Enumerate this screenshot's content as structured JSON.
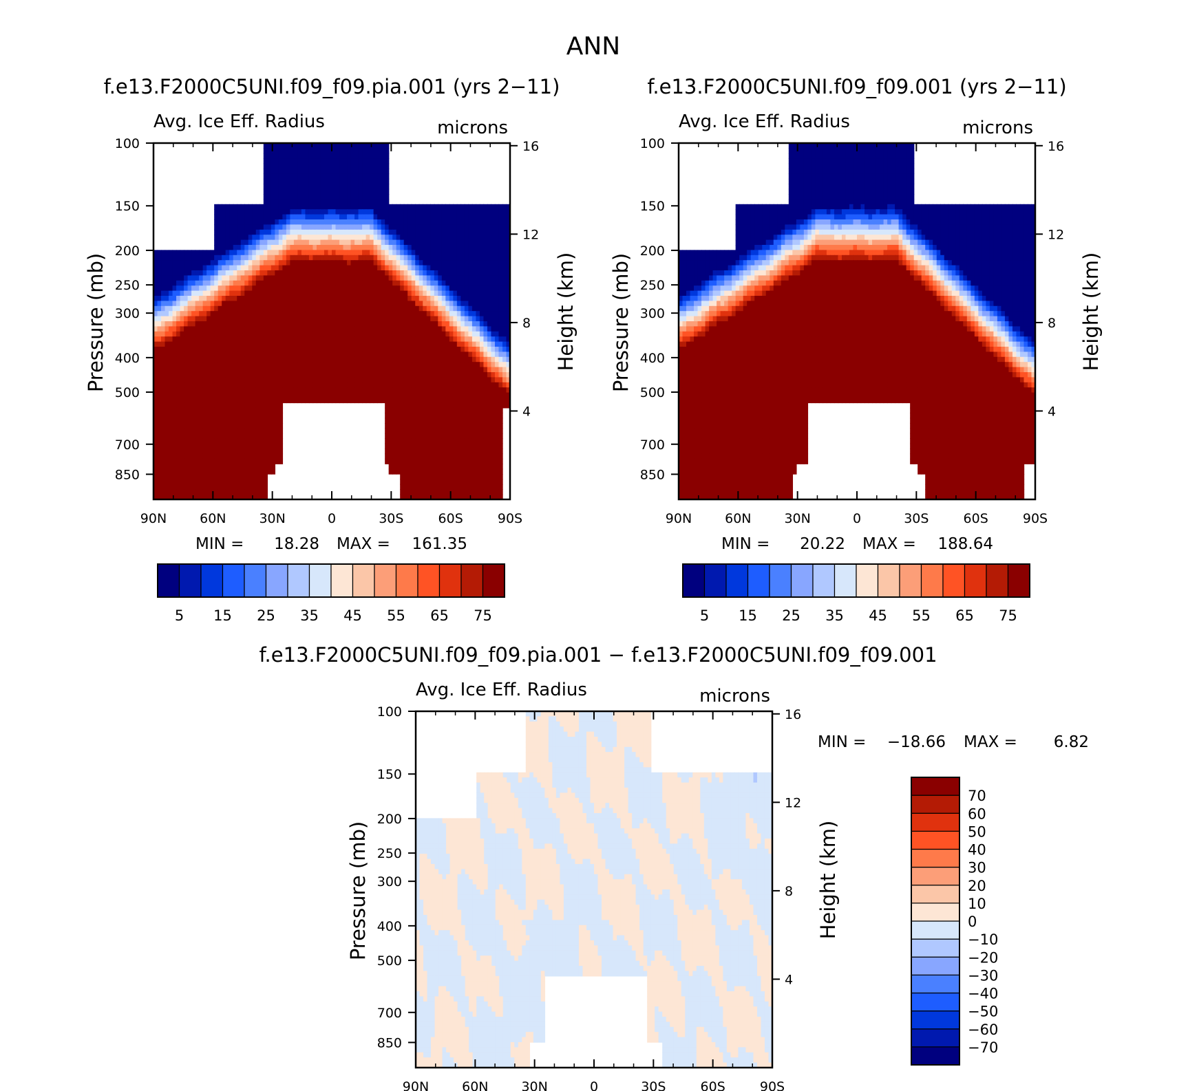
{
  "page_title": "ANN",
  "chart_data": [
    {
      "type": "heatmap",
      "title": "f.e13.F2000C5UNI.f09_f09.pia.001 (yrs 2−11)",
      "subtitle_left": "Avg. Ice Eff. Radius",
      "subtitle_right": "microns",
      "ylabel": "Pressure (mb)",
      "ylabel_right": "Height (km)",
      "y_ticks": [
        "100",
        "150",
        "200",
        "250",
        "300",
        "400",
        "500",
        "700",
        "850"
      ],
      "y_ticks_right": [
        "16",
        "12",
        "8",
        "4"
      ],
      "x_ticks": [
        "90N",
        "60N",
        "30N",
        "0",
        "30S",
        "60S",
        "90S"
      ],
      "ylim": [
        1000,
        100
      ],
      "ylim_right_km": [
        0,
        16.5
      ],
      "log_scale_y": true,
      "min_label": "MIN =",
      "min_value": "18.28",
      "max_label": "MAX =",
      "max_value": "161.35",
      "min": 18.28,
      "max": 161.35,
      "colorbar_labels": [
        "5",
        "15",
        "25",
        "35",
        "45",
        "55",
        "65",
        "75"
      ],
      "colorbar_levels": [
        5,
        10,
        15,
        20,
        25,
        30,
        35,
        40,
        45,
        50,
        55,
        60,
        65,
        70,
        75
      ],
      "colors": [
        "#00007f",
        "#0019af",
        "#0038dd",
        "#1e5dff",
        "#4a80ff",
        "#88a6ff",
        "#b0c8ff",
        "#d7e7fb",
        "#fde6d5",
        "#fbc6a8",
        "#fc9e78",
        "#fe7a4a",
        "#ff5324",
        "#e0320e",
        "#b41b05",
        "#8a0000"
      ],
      "field_variant": "pia"
    },
    {
      "type": "heatmap",
      "title": "f.e13.F2000C5UNI.f09_f09.001 (yrs 2−11)",
      "subtitle_left": "Avg. Ice Eff. Radius",
      "subtitle_right": "microns",
      "ylabel": "Pressure (mb)",
      "ylabel_right": "Height (km)",
      "y_ticks": [
        "100",
        "150",
        "200",
        "250",
        "300",
        "400",
        "500",
        "700",
        "850"
      ],
      "y_ticks_right": [
        "16",
        "12",
        "8",
        "4"
      ],
      "x_ticks": [
        "90N",
        "60N",
        "30N",
        "0",
        "30S",
        "60S",
        "90S"
      ],
      "ylim": [
        1000,
        100
      ],
      "ylim_right_km": [
        0,
        16.5
      ],
      "log_scale_y": true,
      "min_label": "MIN =",
      "min_value": "20.22",
      "max_label": "MAX =",
      "max_value": "188.64",
      "min": 20.22,
      "max": 188.64,
      "colorbar_labels": [
        "5",
        "15",
        "25",
        "35",
        "45",
        "55",
        "65",
        "75"
      ],
      "colorbar_levels": [
        5,
        10,
        15,
        20,
        25,
        30,
        35,
        40,
        45,
        50,
        55,
        60,
        65,
        70,
        75
      ],
      "colors": [
        "#00007f",
        "#0019af",
        "#0038dd",
        "#1e5dff",
        "#4a80ff",
        "#88a6ff",
        "#b0c8ff",
        "#d7e7fb",
        "#fde6d5",
        "#fbc6a8",
        "#fc9e78",
        "#fe7a4a",
        "#ff5324",
        "#e0320e",
        "#b41b05",
        "#8a0000"
      ],
      "field_variant": "control"
    },
    {
      "type": "heatmap",
      "title": "f.e13.F2000C5UNI.f09_f09.pia.001 − f.e13.F2000C5UNI.f09_f09.001",
      "subtitle_left": "Avg. Ice Eff. Radius",
      "subtitle_right": "microns",
      "ylabel": "Pressure (mb)",
      "ylabel_right": "Height (km)",
      "y_ticks": [
        "100",
        "150",
        "200",
        "250",
        "300",
        "400",
        "500",
        "700",
        "850"
      ],
      "y_ticks_right": [
        "16",
        "12",
        "8",
        "4"
      ],
      "x_ticks": [
        "90N",
        "60N",
        "30N",
        "0",
        "30S",
        "60S",
        "90S"
      ],
      "ylim": [
        1000,
        100
      ],
      "log_scale_y": true,
      "min_label": "MIN =",
      "min_value": "−18.66",
      "max_label": "MAX =",
      "max_value": "6.82",
      "min": -18.66,
      "max": 6.82,
      "colorbar_labels": [
        "70",
        "60",
        "50",
        "40",
        "30",
        "20",
        "10",
        "0",
        "−10",
        "−20",
        "−30",
        "−40",
        "−50",
        "−60",
        "−70"
      ],
      "colorbar_levels": [
        -70,
        -60,
        -50,
        -40,
        -30,
        -20,
        -10,
        0,
        10,
        20,
        30,
        40,
        50,
        60,
        70
      ],
      "colors": [
        "#00007f",
        "#0019af",
        "#0038dd",
        "#1e5dff",
        "#4a80ff",
        "#88a6ff",
        "#b0c8ff",
        "#d7e7fb",
        "#fde6d5",
        "#fbc6a8",
        "#fc9e78",
        "#fe7a4a",
        "#ff5324",
        "#e0320e",
        "#b41b05",
        "#8a0000"
      ]
    }
  ]
}
